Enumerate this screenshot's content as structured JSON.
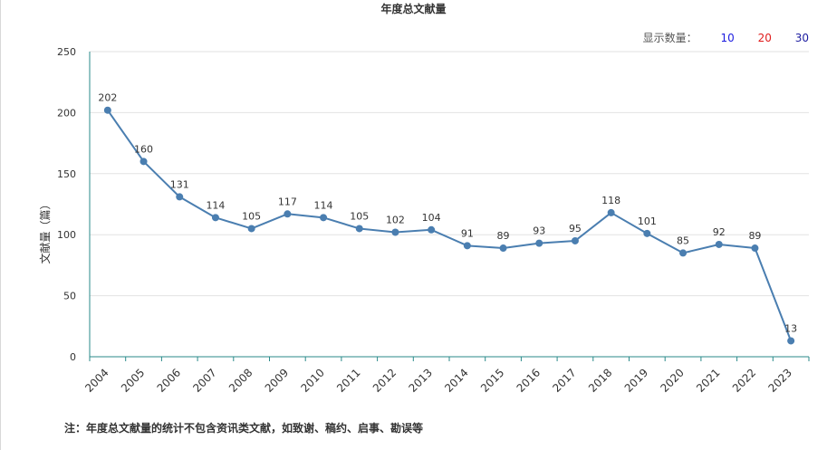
{
  "colors": {
    "line": "#4a7eb0",
    "axis": "#2a8a8a",
    "grid": "#e2e2e2",
    "option_10": "#1c1ce0",
    "option_20": "#e01c1c",
    "option_30": "#1c1ca0"
  },
  "count_selector": {
    "label": "显示数量：",
    "options": [
      "10",
      "20",
      "30"
    ]
  },
  "footnote": "注：年度总文献量的统计不包含资讯类文献，如致谢、稿约、启事、勘误等",
  "chart_data": {
    "type": "line",
    "title": "年度总文献量",
    "xlabel": "",
    "ylabel": "文献量（篇）",
    "ylim": [
      0,
      250
    ],
    "yticks": [
      0,
      50,
      100,
      150,
      200,
      250
    ],
    "grid": true,
    "categories": [
      "2004",
      "2005",
      "2006",
      "2007",
      "2008",
      "2009",
      "2010",
      "2011",
      "2012",
      "2013",
      "2014",
      "2015",
      "2016",
      "2017",
      "2018",
      "2019",
      "2020",
      "2021",
      "2022",
      "2023"
    ],
    "series": [
      {
        "values": [
          202,
          160,
          131,
          114,
          105,
          117,
          114,
          105,
          102,
          104,
          91,
          89,
          93,
          95,
          118,
          101,
          85,
          92,
          89,
          13
        ],
        "labels": [
          "202",
          "160",
          "131",
          "114",
          "105",
          "117",
          "114",
          "105",
          "102",
          "104",
          "91",
          "89",
          "93",
          "95",
          "118",
          "101",
          "85",
          "92",
          "89",
          "13"
        ]
      }
    ]
  }
}
